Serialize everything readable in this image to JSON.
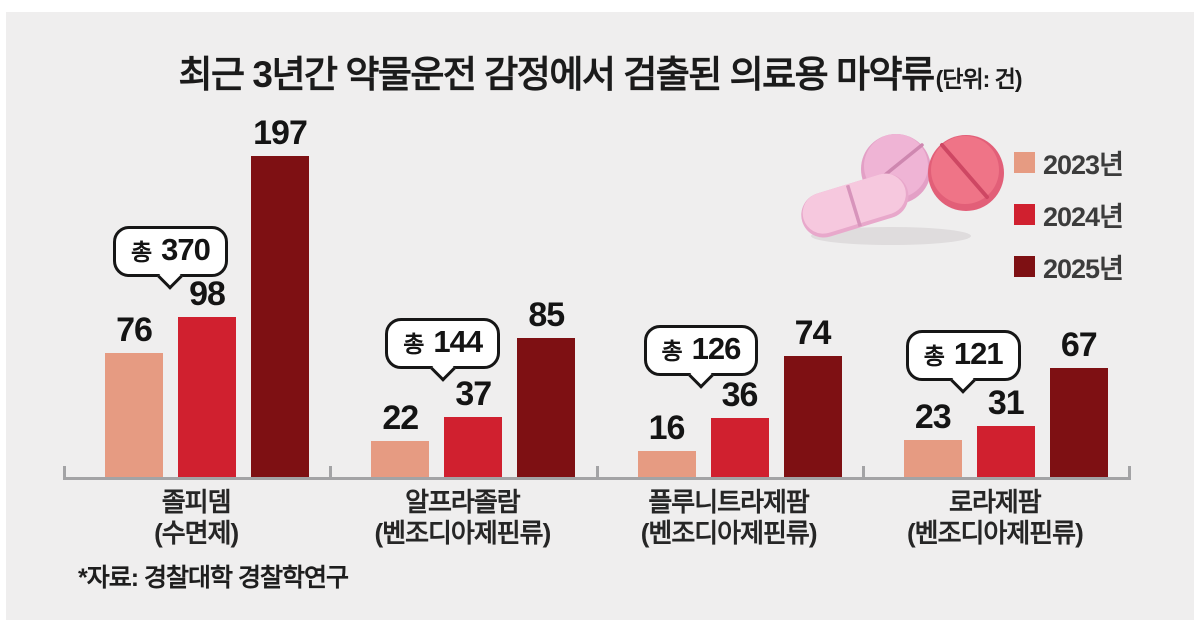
{
  "title": {
    "main": "최근 3년간 약물운전 감정에서 검출된 의료용 마약류",
    "unit": "(단위: 건)"
  },
  "source_note": "*자료: 경찰대학 경찰학연구",
  "colors": {
    "background": "#efeeee",
    "axis": "#a3a3a5",
    "bubble_border": "#161616"
  },
  "chart_data": {
    "type": "bar",
    "title": "최근 3년간 약물운전 감정에서 검출된 의료용 마약류",
    "unit_label": "(단위: 건)",
    "legend_position": "top-right",
    "grid": false,
    "value_labels": true,
    "ylim": [
      0,
      210
    ],
    "series": [
      {
        "name": "2023년",
        "color": "#E69B82"
      },
      {
        "name": "2024년",
        "color": "#D0202F"
      },
      {
        "name": "2025년",
        "color": "#7E1013"
      }
    ],
    "categories": [
      {
        "name": "졸피뎀",
        "sub": "(수면제)",
        "total_prefix": "총",
        "total": 370,
        "values": [
          76,
          98,
          197
        ]
      },
      {
        "name": "알프라졸람",
        "sub": "(벤조디아제핀류)",
        "total_prefix": "총",
        "total": 144,
        "values": [
          22,
          37,
          85
        ]
      },
      {
        "name": "플루니트라제팜",
        "sub": "(벤조디아제핀류)",
        "total_prefix": "총",
        "total": 126,
        "values": [
          16,
          36,
          74
        ]
      },
      {
        "name": "로라제팜",
        "sub": "(벤조디아제핀류)",
        "total_prefix": "총",
        "total": 121,
        "values": [
          23,
          31,
          67
        ]
      }
    ]
  }
}
